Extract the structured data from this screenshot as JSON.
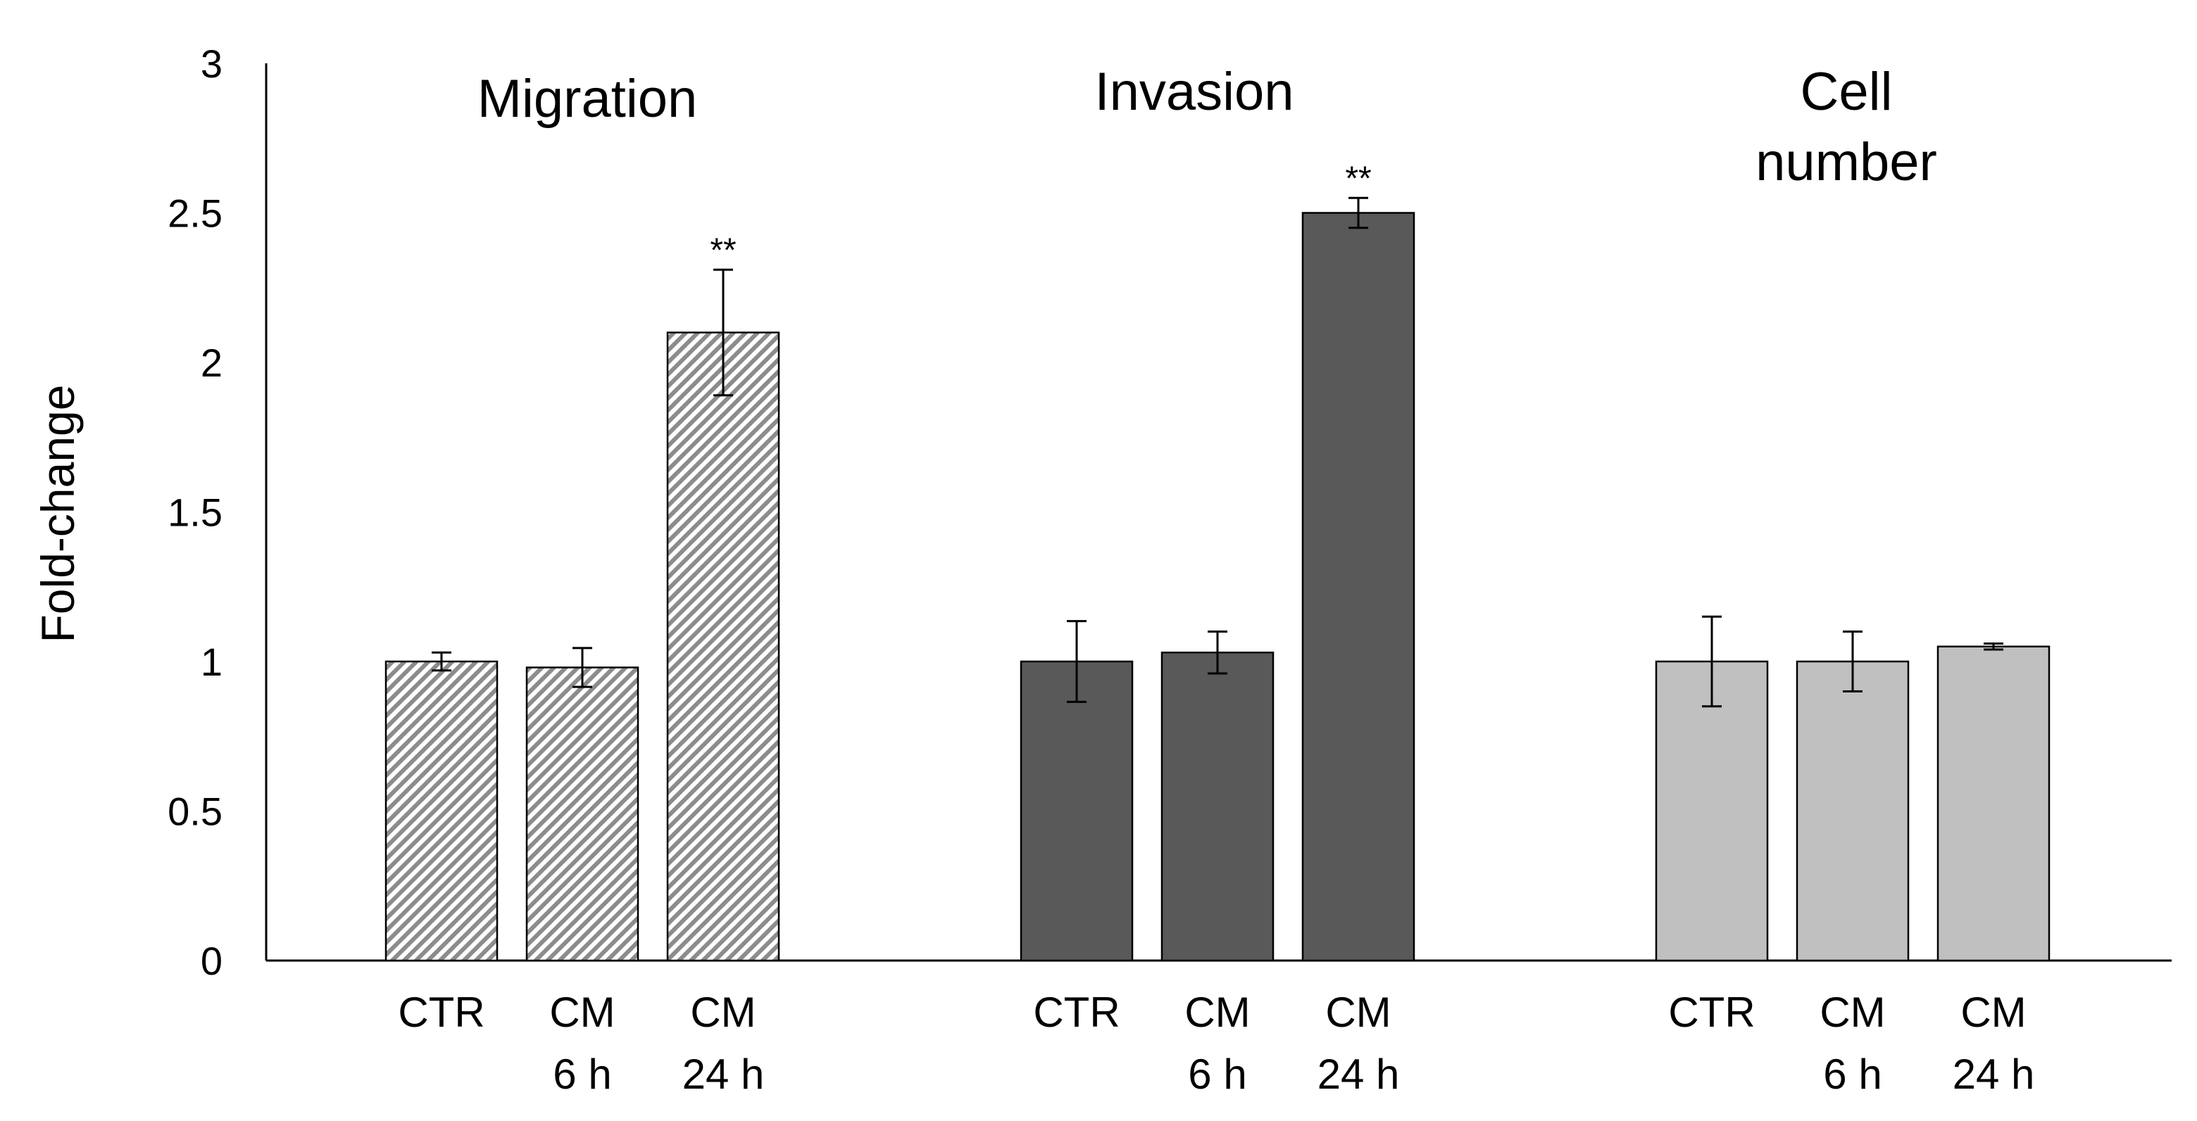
{
  "chart_data": {
    "type": "bar",
    "ylabel": "Fold-change",
    "ylim": [
      0,
      3
    ],
    "yticks": [
      "0",
      "0.5",
      "1",
      "1.5",
      "2",
      "2.5",
      "3"
    ],
    "groups": [
      {
        "title": [
          "Migration"
        ],
        "fill": "hatched",
        "color": "#8c8c8c",
        "bars": [
          {
            "label": [
              "CTR"
            ],
            "value": 1.0,
            "error": 0.03,
            "sig": ""
          },
          {
            "label": [
              "CM",
              "6 h"
            ],
            "value": 0.98,
            "error": 0.065,
            "sig": ""
          },
          {
            "label": [
              "CM",
              "24 h"
            ],
            "value": 2.1,
            "error": 0.21,
            "sig": "**"
          }
        ]
      },
      {
        "title": [
          "Invasion"
        ],
        "fill": "solid",
        "color": "#595959",
        "bars": [
          {
            "label": [
              "CTR"
            ],
            "value": 1.0,
            "error": 0.135,
            "sig": ""
          },
          {
            "label": [
              "CM",
              "6 h"
            ],
            "value": 1.03,
            "error": 0.07,
            "sig": ""
          },
          {
            "label": [
              "CM",
              "24 h"
            ],
            "value": 2.5,
            "error": 0.05,
            "sig": "**"
          }
        ]
      },
      {
        "title": [
          "Cell",
          "number"
        ],
        "fill": "solid",
        "color": "#c0c0c0",
        "bars": [
          {
            "label": [
              "CTR"
            ],
            "value": 1.0,
            "error": 0.15,
            "sig": ""
          },
          {
            "label": [
              "CM",
              "6 h"
            ],
            "value": 1.0,
            "error": 0.1,
            "sig": ""
          },
          {
            "label": [
              "CM",
              "24 h"
            ],
            "value": 1.05,
            "error": 0.01,
            "sig": ""
          }
        ]
      }
    ]
  }
}
